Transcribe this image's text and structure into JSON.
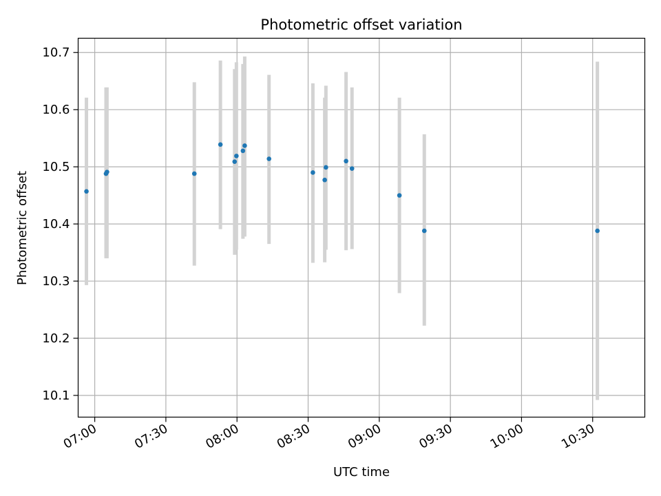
{
  "chart_data": {
    "type": "scatter",
    "title": "Photometric offset variation",
    "xlabel": "UTC time",
    "ylabel": "Photometric offset",
    "grid": true,
    "colors": {
      "point": "#1f77b4",
      "errorbar": "#d3d3d3",
      "grid": "#b0b0b0"
    },
    "x_ticks": [
      "07:00",
      "07:30",
      "08:00",
      "08:30",
      "09:00",
      "09:30",
      "10:00",
      "10:30"
    ],
    "y_ticks": [
      "10.1",
      "10.2",
      "10.3",
      "10.4",
      "10.5",
      "10.6",
      "10.7"
    ],
    "xlim": [
      "06:53",
      "10:52"
    ],
    "ylim": [
      10.062,
      10.725
    ],
    "points": [
      {
        "x": "06:56:30",
        "y": 10.457,
        "err_low": 10.293,
        "err_high": 10.621
      },
      {
        "x": "07:04:45",
        "y": 10.488,
        "err_low": 10.34,
        "err_high": 10.639
      },
      {
        "x": "07:05:10",
        "y": 10.491,
        "err_low": 10.34,
        "err_high": 10.639
      },
      {
        "x": "07:42:00",
        "y": 10.488,
        "err_low": 10.327,
        "err_high": 10.648
      },
      {
        "x": "07:53:00",
        "y": 10.539,
        "err_low": 10.391,
        "err_high": 10.686
      },
      {
        "x": "07:59:00",
        "y": 10.509,
        "err_low": 10.346,
        "err_high": 10.671
      },
      {
        "x": "07:59:45",
        "y": 10.519,
        "err_low": 10.355,
        "err_high": 10.683
      },
      {
        "x": "08:02:30",
        "y": 10.528,
        "err_low": 10.374,
        "err_high": 10.68
      },
      {
        "x": "08:03:15",
        "y": 10.537,
        "err_low": 10.378,
        "err_high": 10.693
      },
      {
        "x": "08:13:30",
        "y": 10.514,
        "err_low": 10.365,
        "err_high": 10.661
      },
      {
        "x": "08:32:00",
        "y": 10.49,
        "err_low": 10.332,
        "err_high": 10.646
      },
      {
        "x": "08:37:00",
        "y": 10.477,
        "err_low": 10.333,
        "err_high": 10.621
      },
      {
        "x": "08:37:30",
        "y": 10.499,
        "err_low": 10.355,
        "err_high": 10.642
      },
      {
        "x": "08:46:00",
        "y": 10.51,
        "err_low": 10.354,
        "err_high": 10.666
      },
      {
        "x": "08:48:30",
        "y": 10.497,
        "err_low": 10.356,
        "err_high": 10.639
      },
      {
        "x": "09:08:30",
        "y": 10.45,
        "err_low": 10.279,
        "err_high": 10.621
      },
      {
        "x": "09:19:00",
        "y": 10.388,
        "err_low": 10.222,
        "err_high": 10.557
      },
      {
        "x": "10:32:00",
        "y": 10.388,
        "err_low": 10.092,
        "err_high": 10.684
      }
    ]
  }
}
